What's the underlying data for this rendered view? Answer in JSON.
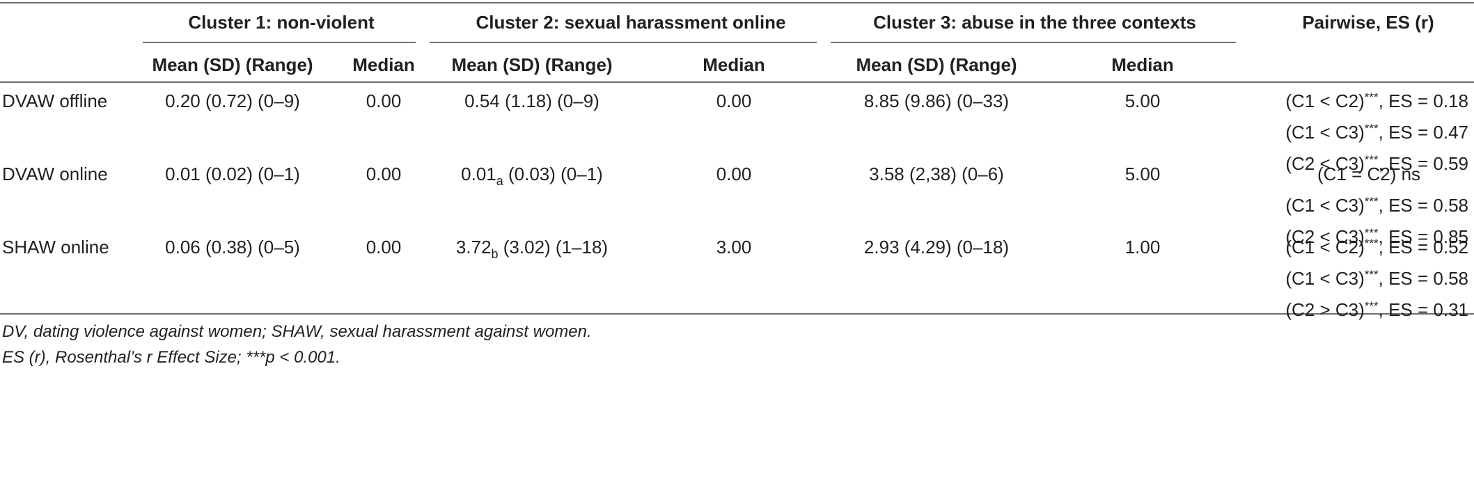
{
  "header": {
    "clusters": [
      {
        "title": "Cluster 1: non-violent",
        "col1": "Mean (SD) (Range)",
        "col2": "Median"
      },
      {
        "title": "Cluster 2: sexual harassment online",
        "col1": "Mean (SD) (Range)",
        "col2": "Median"
      },
      {
        "title": "Cluster 3: abuse in the three contexts",
        "col1": "Mean (SD) (Range)",
        "col2": "Median"
      }
    ],
    "pairwise": "Pairwise, ES (r)"
  },
  "rows": [
    {
      "label": "DVAW offline",
      "c1_mean": "0.20 (0.72) (0–9)",
      "c1_median": "0.00",
      "c2_mean_pre": "0.54 (1.18) (0–9)",
      "c2_sub": "",
      "c2_mean_post": "",
      "c2_median": "0.00",
      "c3_mean": "8.85 (9.86) (0–33)",
      "c3_median": "5.00",
      "pairwise": [
        {
          "pre": "(C1  < C2)",
          "sup": "***",
          "post": ", ES = 0.18"
        },
        {
          "pre": "(C1  < C3)",
          "sup": "***",
          "post": ", ES = 0.47"
        },
        {
          "pre": "(C2  < C3)",
          "sup": "***",
          "post": ", ES = 0.59"
        }
      ]
    },
    {
      "label": "DVAW online",
      "c1_mean": "0.01 (0.02) (0–1)",
      "c1_median": "0.00",
      "c2_mean_pre": "0.01",
      "c2_sub": "a",
      "c2_mean_post": " (0.03) (0–1)",
      "c2_median": "0.00",
      "c3_mean": "3.58 (2,38) (0–6)",
      "c3_median": "5.00",
      "pairwise": [
        {
          "pre": "(C1 = C2) ns",
          "sup": "",
          "post": ""
        },
        {
          "pre": "(C1  < C3)",
          "sup": "***",
          "post": ", ES = 0.58"
        },
        {
          "pre": "(C2  < C3)",
          "sup": "***",
          "post": ", ES = 0.85"
        }
      ]
    },
    {
      "label": "SHAW online",
      "c1_mean": "0.06 (0.38) (0–5)",
      "c1_median": "0.00",
      "c2_mean_pre": "3.72",
      "c2_sub": "b",
      "c2_mean_post": " (3.02) (1–18)",
      "c2_median": "3.00",
      "c3_mean": "2.93 (4.29) (0–18)",
      "c3_median": "1.00",
      "pairwise": [
        {
          "pre": "(C1  < C2)",
          "sup": "***",
          "post": ", ES = 0.52"
        },
        {
          "pre": "(C1  < C3)",
          "sup": "***",
          "post": ", ES = 0.58"
        },
        {
          "pre": "(C2  > C3)",
          "sup": "***",
          "post": ", ES = 0.31"
        }
      ]
    }
  ],
  "notes": [
    "DV, dating violence against women; SHAW, sexual harassment against women.",
    "ES (r), Rosenthal’s r Effect Size; ***p  < 0.001."
  ]
}
